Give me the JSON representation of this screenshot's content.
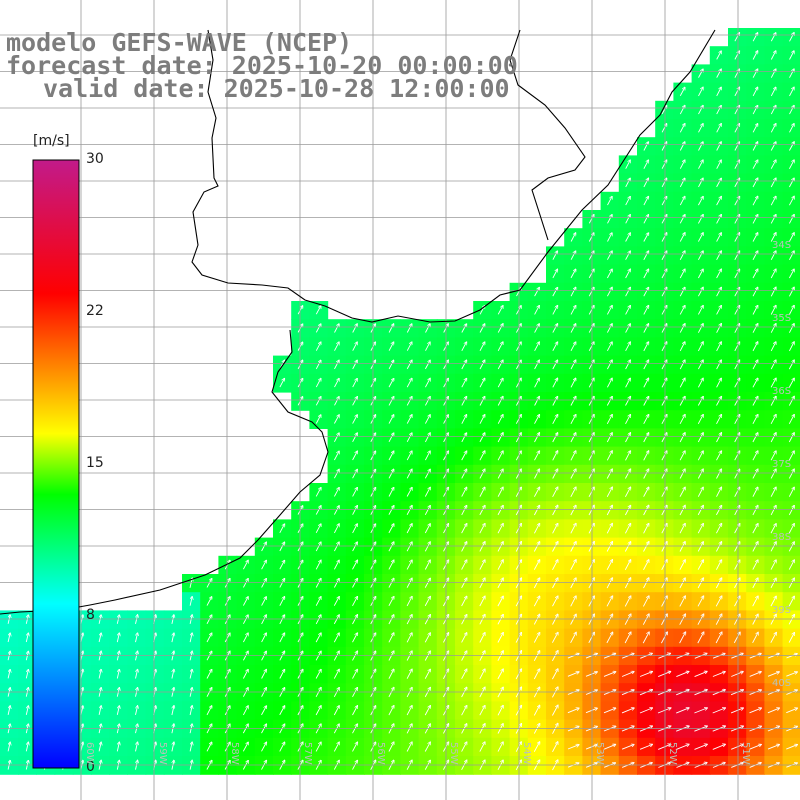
{
  "title": {
    "line1": "modelo GEFS-WAVE (NCEP)",
    "line2": "forecast date: 2025-10-20 00:00:00",
    "line3": "valid date: 2025-10-28 12:00:00"
  },
  "colorbar": {
    "unit": "[m/s]",
    "ticks": [
      {
        "value": 30,
        "label": "30"
      },
      {
        "value": 22,
        "label": "22"
      },
      {
        "value": 15,
        "label": "15"
      },
      {
        "value": 8,
        "label": "8"
      },
      {
        "value": 0,
        "label": "0"
      }
    ],
    "range": [
      0,
      30
    ],
    "colors": [
      "#0000ff",
      "#00ffff",
      "#00ff00",
      "#ffff00",
      "#ff0000",
      "#c21a8a"
    ]
  },
  "grid": {
    "lat_labels": [
      "34S",
      "35S",
      "36S",
      "37S",
      "38S",
      "39S",
      "40S"
    ],
    "lon_labels": [
      "60W",
      "59W",
      "58W",
      "57W",
      "56W",
      "55W",
      "54W",
      "53W",
      "52W",
      "51W"
    ]
  },
  "field": {
    "variable": "wind speed and direction",
    "land_color": "#ffffff",
    "coastline_color": "#000000",
    "arrow_color": "#ffffff"
  }
}
